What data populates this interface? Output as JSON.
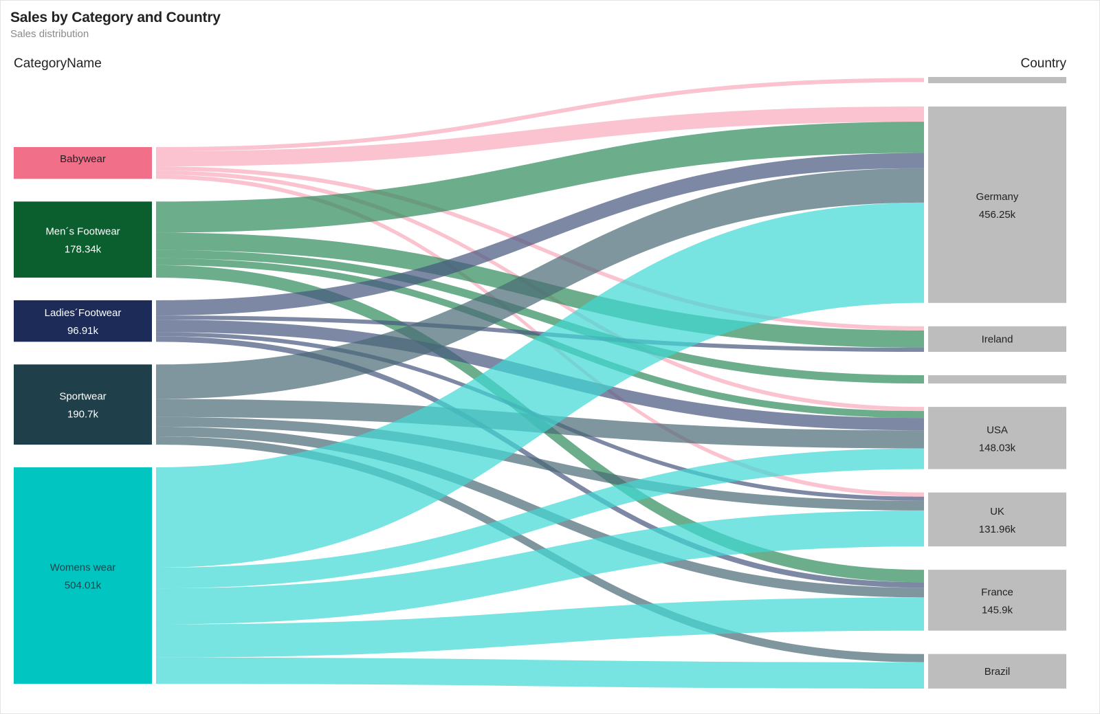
{
  "header": {
    "title": "Sales by Category and Country",
    "subtitle": "Sales distribution"
  },
  "columns": {
    "left": "CategoryName",
    "right": "Country"
  },
  "chart_data": {
    "type": "sankey",
    "title": "Sales by Category and Country",
    "subtitle": "Sales distribution",
    "source_column": "CategoryName",
    "target_column": "Country",
    "sources": [
      {
        "name": "Babywear",
        "value_label": "",
        "color": "#f26f8a",
        "text_color": "#222222"
      },
      {
        "name": "Men´s Footwear",
        "value_label": "178.34k",
        "color": "#0b5e2e",
        "text_color": "#ffffff"
      },
      {
        "name": "Ladies´Footwear",
        "value_label": "96.91k",
        "color": "#1c2b57",
        "text_color": "#ffffff"
      },
      {
        "name": "Sportwear",
        "value_label": "190.7k",
        "color": "#1f3f4a",
        "text_color": "#ffffff"
      },
      {
        "name": "Womens wear",
        "value_label": "504.01k",
        "color": "#00c5c1",
        "text_color": "#1f3f4a"
      }
    ],
    "targets": [
      {
        "name": "",
        "value_label": "",
        "color": "#bdbdbd"
      },
      {
        "name": "Germany",
        "value_label": "456.25k",
        "color": "#bdbdbd"
      },
      {
        "name": "Ireland",
        "value_label": "",
        "color": "#bdbdbd"
      },
      {
        "name": "",
        "value_label": "",
        "color": "#bdbdbd"
      },
      {
        "name": "USA",
        "value_label": "148.03k",
        "color": "#bdbdbd"
      },
      {
        "name": "UK",
        "value_label": "131.96k",
        "color": "#bdbdbd"
      },
      {
        "name": "France",
        "value_label": "145.9k",
        "color": "#bdbdbd"
      },
      {
        "name": "Brazil",
        "value_label": "",
        "color": "#bdbdbd"
      }
    ],
    "link_colors": {
      "Babywear": "#f9a8ba",
      "Men´s Footwear": "#2d8a5a",
      "Ladies´Footwear": "#46557f",
      "Sportwear": "#4a6a75",
      "Womens wear": "#3fd8d4"
    },
    "links": [
      {
        "source": "Babywear",
        "target": 0,
        "value": 6
      },
      {
        "source": "Babywear",
        "target": "Germany",
        "value": 22
      },
      {
        "source": "Babywear",
        "target": "Ireland",
        "value": 6
      },
      {
        "source": "Babywear",
        "target": "USA",
        "value": 6
      },
      {
        "source": "Babywear",
        "target": "UK",
        "value": 6
      },
      {
        "source": "Men´s Footwear",
        "target": "Germany",
        "value": 45
      },
      {
        "source": "Men´s Footwear",
        "target": "Ireland",
        "value": 25
      },
      {
        "source": "Men´s Footwear",
        "target": 3,
        "value": 12
      },
      {
        "source": "Men´s Footwear",
        "target": "USA",
        "value": 10
      },
      {
        "source": "Men´s Footwear",
        "target": "France",
        "value": 18
      },
      {
        "source": "Ladies´Footwear",
        "target": "Germany",
        "value": 22
      },
      {
        "source": "Ladies´Footwear",
        "target": "Ireland",
        "value": 6
      },
      {
        "source": "Ladies´Footwear",
        "target": "USA",
        "value": 18
      },
      {
        "source": "Ladies´Footwear",
        "target": "UK",
        "value": 6
      },
      {
        "source": "Ladies´Footwear",
        "target": "France",
        "value": 8
      },
      {
        "source": "Sportwear",
        "target": "Germany",
        "value": 50
      },
      {
        "source": "Sportwear",
        "target": "USA",
        "value": 26
      },
      {
        "source": "Sportwear",
        "target": "UK",
        "value": 14
      },
      {
        "source": "Sportwear",
        "target": "France",
        "value": 14
      },
      {
        "source": "Sportwear",
        "target": "Brazil",
        "value": 12
      },
      {
        "source": "Womens wear",
        "target": "Germany",
        "value": 145
      },
      {
        "source": "Womens wear",
        "target": "USA",
        "value": 30
      },
      {
        "source": "Womens wear",
        "target": "UK",
        "value": 52
      },
      {
        "source": "Womens wear",
        "target": "France",
        "value": 48
      },
      {
        "source": "Womens wear",
        "target": "Brazil",
        "value": 38
      }
    ]
  }
}
